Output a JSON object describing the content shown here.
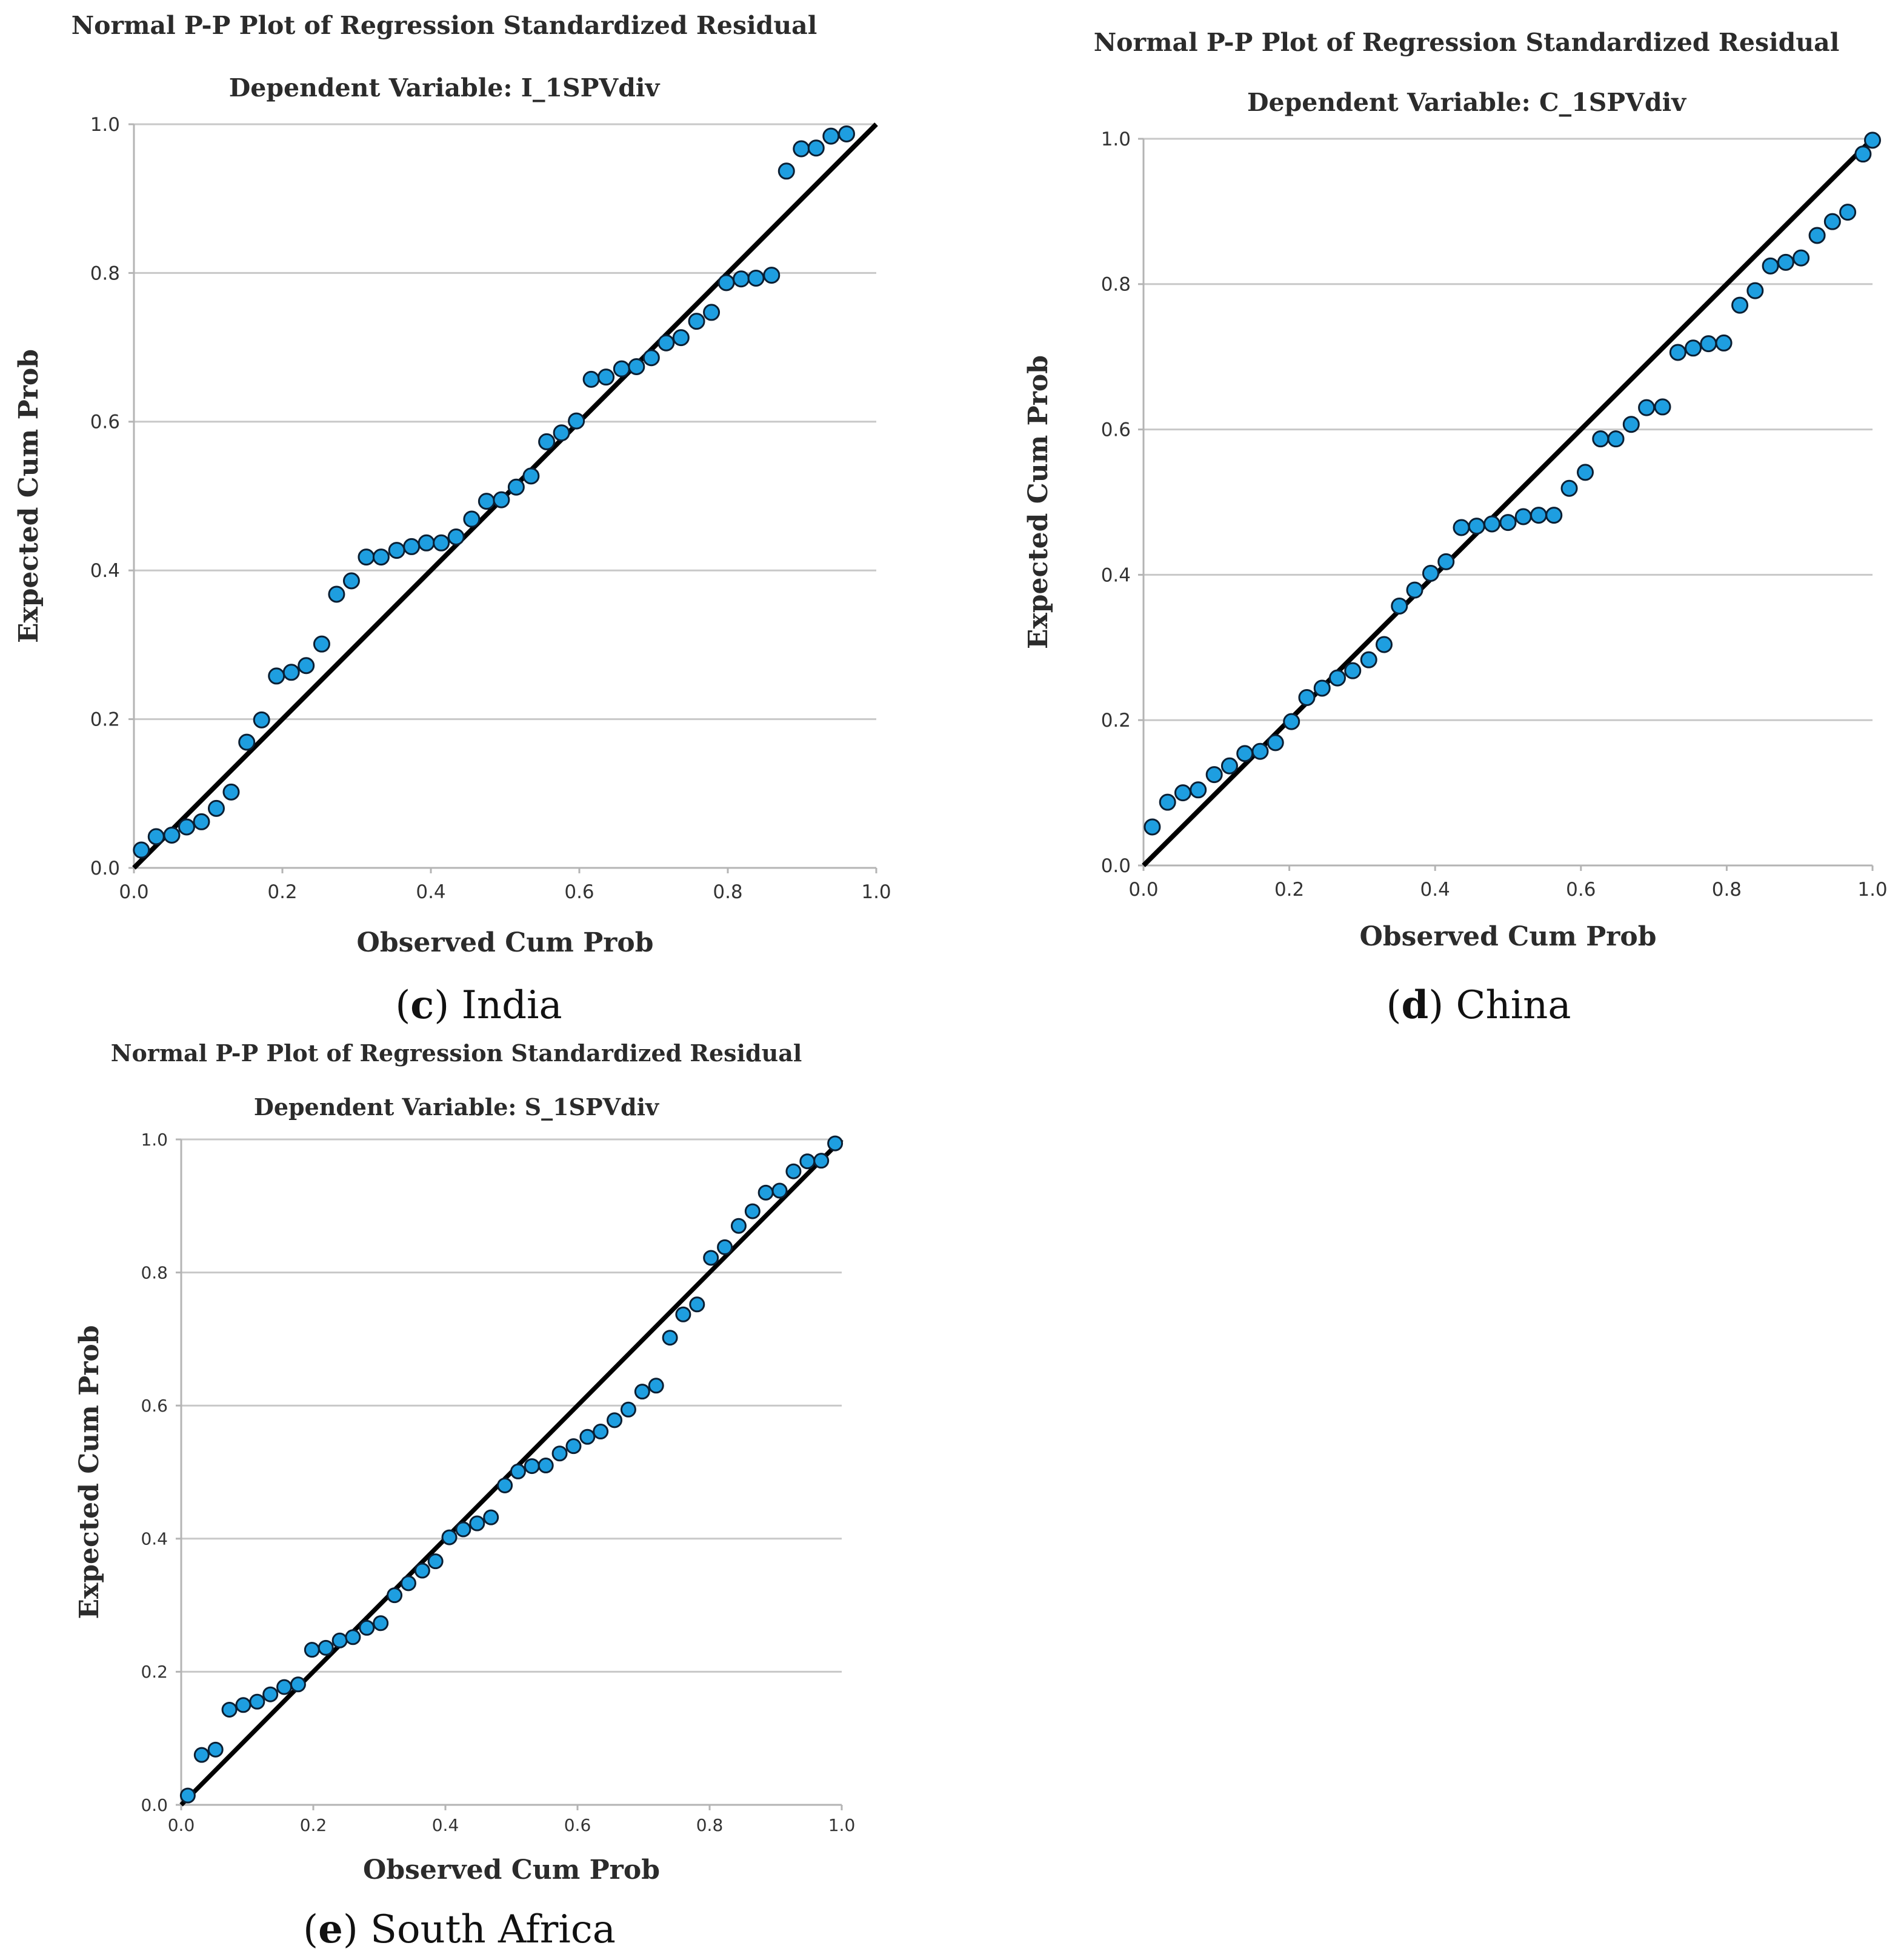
{
  "colors": {
    "point_fill": "#1e9ee0",
    "point_stroke": "#0b1f33",
    "line": "#000000",
    "grid": "#c8c8c8",
    "axis": "#b4b4b4"
  },
  "chart_data": [
    {
      "id": "c",
      "type": "scatter",
      "title": "Normal P-P Plot of Regression Standardized Residual",
      "subtitle": "Dependent Variable: I_1SPVdiv",
      "xlabel": "Observed Cum Prob",
      "ylabel": "Expected Cum Prob",
      "xlim": [
        0,
        1
      ],
      "ylim": [
        0,
        1
      ],
      "xticks": [
        "0.0",
        "0.2",
        "0.4",
        "0.6",
        "0.8",
        "1.0"
      ],
      "yticks": [
        "0.0",
        "0.2",
        "0.4",
        "0.6",
        "0.8",
        "1.0"
      ],
      "grid": "horizontal",
      "reference_line": [
        [
          0,
          0
        ],
        [
          1,
          1
        ]
      ],
      "caption": {
        "letter": "c",
        "text": "India"
      },
      "points": [
        [
          0.01,
          0.024
        ],
        [
          0.03,
          0.042
        ],
        [
          0.051,
          0.044
        ],
        [
          0.071,
          0.055
        ],
        [
          0.091,
          0.062
        ],
        [
          0.111,
          0.08
        ],
        [
          0.131,
          0.102
        ],
        [
          0.152,
          0.169
        ],
        [
          0.172,
          0.199
        ],
        [
          0.192,
          0.258
        ],
        [
          0.212,
          0.263
        ],
        [
          0.232,
          0.272
        ],
        [
          0.253,
          0.301
        ],
        [
          0.273,
          0.368
        ],
        [
          0.293,
          0.386
        ],
        [
          0.313,
          0.418
        ],
        [
          0.333,
          0.418
        ],
        [
          0.354,
          0.427
        ],
        [
          0.374,
          0.432
        ],
        [
          0.394,
          0.437
        ],
        [
          0.414,
          0.437
        ],
        [
          0.434,
          0.445
        ],
        [
          0.455,
          0.469
        ],
        [
          0.475,
          0.493
        ],
        [
          0.495,
          0.495
        ],
        [
          0.515,
          0.512
        ],
        [
          0.535,
          0.527
        ],
        [
          0.556,
          0.573
        ],
        [
          0.576,
          0.585
        ],
        [
          0.596,
          0.601
        ],
        [
          0.616,
          0.657
        ],
        [
          0.636,
          0.66
        ],
        [
          0.657,
          0.671
        ],
        [
          0.677,
          0.674
        ],
        [
          0.697,
          0.686
        ],
        [
          0.717,
          0.706
        ],
        [
          0.737,
          0.713
        ],
        [
          0.758,
          0.735
        ],
        [
          0.778,
          0.747
        ],
        [
          0.798,
          0.787
        ],
        [
          0.818,
          0.792
        ],
        [
          0.838,
          0.793
        ],
        [
          0.859,
          0.797
        ],
        [
          0.879,
          0.937
        ],
        [
          0.899,
          0.967
        ],
        [
          0.919,
          0.968
        ],
        [
          0.939,
          0.984
        ],
        [
          0.96,
          0.987
        ]
      ]
    },
    {
      "id": "d",
      "type": "scatter",
      "title": "Normal P-P Plot of Regression Standardized Residual",
      "subtitle": "Dependent Variable: C_1SPVdiv",
      "xlabel": "Observed Cum Prob",
      "ylabel": "Expected Cum Prob",
      "xlim": [
        0,
        1
      ],
      "ylim": [
        0,
        1
      ],
      "xticks": [
        "0.0",
        "0.2",
        "0.4",
        "0.6",
        "0.8",
        "1.0"
      ],
      "yticks": [
        "0.0",
        "0.2",
        "0.4",
        "0.6",
        "0.8",
        "1.0"
      ],
      "grid": "horizontal",
      "reference_line": [
        [
          0,
          0
        ],
        [
          1,
          1
        ]
      ],
      "caption": {
        "letter": "d",
        "text": "China"
      },
      "points": [
        [
          0.012,
          0.053
        ],
        [
          0.033,
          0.087
        ],
        [
          0.054,
          0.1
        ],
        [
          0.075,
          0.104
        ],
        [
          0.097,
          0.125
        ],
        [
          0.118,
          0.137
        ],
        [
          0.139,
          0.154
        ],
        [
          0.16,
          0.157
        ],
        [
          0.181,
          0.169
        ],
        [
          0.203,
          0.198
        ],
        [
          0.224,
          0.231
        ],
        [
          0.245,
          0.244
        ],
        [
          0.266,
          0.258
        ],
        [
          0.287,
          0.268
        ],
        [
          0.309,
          0.283
        ],
        [
          0.33,
          0.304
        ],
        [
          0.351,
          0.357
        ],
        [
          0.372,
          0.379
        ],
        [
          0.394,
          0.402
        ],
        [
          0.415,
          0.418
        ],
        [
          0.436,
          0.465
        ],
        [
          0.457,
          0.467
        ],
        [
          0.478,
          0.47
        ],
        [
          0.5,
          0.472
        ],
        [
          0.521,
          0.48
        ],
        [
          0.542,
          0.482
        ],
        [
          0.563,
          0.482
        ],
        [
          0.584,
          0.519
        ],
        [
          0.606,
          0.541
        ],
        [
          0.627,
          0.587
        ],
        [
          0.648,
          0.587
        ],
        [
          0.669,
          0.607
        ],
        [
          0.69,
          0.63
        ],
        [
          0.712,
          0.631
        ],
        [
          0.733,
          0.706
        ],
        [
          0.754,
          0.712
        ],
        [
          0.775,
          0.718
        ],
        [
          0.796,
          0.719
        ],
        [
          0.818,
          0.771
        ],
        [
          0.839,
          0.791
        ],
        [
          0.86,
          0.825
        ],
        [
          0.881,
          0.83
        ],
        [
          0.902,
          0.836
        ],
        [
          0.924,
          0.867
        ],
        [
          0.945,
          0.886
        ],
        [
          0.966,
          0.899
        ],
        [
          0.987,
          0.979
        ],
        [
          1.0,
          0.998
        ]
      ]
    },
    {
      "id": "e",
      "type": "scatter",
      "title": "Normal P-P Plot of Regression Standardized Residual",
      "subtitle": "Dependent Variable: S_1SPVdiv",
      "xlabel": "Observed Cum Prob",
      "ylabel": "Expected Cum Prob",
      "xlim": [
        0,
        1
      ],
      "ylim": [
        0,
        1
      ],
      "xticks": [
        "0.0",
        "0.2",
        "0.4",
        "0.6",
        "0.8",
        "1.0"
      ],
      "yticks": [
        "0.0",
        "0.2",
        "0.4",
        "0.6",
        "0.8",
        "1.0"
      ],
      "grid": "horizontal",
      "reference_line": [
        [
          0,
          0
        ],
        [
          1,
          1
        ]
      ],
      "caption": {
        "letter": "e",
        "text": "South Africa"
      },
      "points": [
        [
          0.01,
          0.014
        ],
        [
          0.031,
          0.075
        ],
        [
          0.052,
          0.083
        ],
        [
          0.073,
          0.143
        ],
        [
          0.094,
          0.15
        ],
        [
          0.115,
          0.155
        ],
        [
          0.135,
          0.166
        ],
        [
          0.156,
          0.177
        ],
        [
          0.177,
          0.181
        ],
        [
          0.198,
          0.233
        ],
        [
          0.219,
          0.236
        ],
        [
          0.24,
          0.247
        ],
        [
          0.26,
          0.252
        ],
        [
          0.281,
          0.266
        ],
        [
          0.302,
          0.273
        ],
        [
          0.323,
          0.315
        ],
        [
          0.344,
          0.333
        ],
        [
          0.365,
          0.352
        ],
        [
          0.385,
          0.366
        ],
        [
          0.406,
          0.402
        ],
        [
          0.427,
          0.414
        ],
        [
          0.448,
          0.423
        ],
        [
          0.469,
          0.432
        ],
        [
          0.49,
          0.48
        ],
        [
          0.51,
          0.501
        ],
        [
          0.531,
          0.509
        ],
        [
          0.552,
          0.51
        ],
        [
          0.573,
          0.528
        ],
        [
          0.594,
          0.539
        ],
        [
          0.615,
          0.553
        ],
        [
          0.635,
          0.561
        ],
        [
          0.656,
          0.578
        ],
        [
          0.677,
          0.594
        ],
        [
          0.698,
          0.621
        ],
        [
          0.719,
          0.63
        ],
        [
          0.74,
          0.702
        ],
        [
          0.76,
          0.737
        ],
        [
          0.781,
          0.752
        ],
        [
          0.802,
          0.822
        ],
        [
          0.823,
          0.838
        ],
        [
          0.844,
          0.87
        ],
        [
          0.865,
          0.892
        ],
        [
          0.885,
          0.92
        ],
        [
          0.906,
          0.923
        ],
        [
          0.927,
          0.952
        ],
        [
          0.948,
          0.967
        ],
        [
          0.969,
          0.968
        ],
        [
          0.99,
          0.994
        ]
      ]
    }
  ]
}
